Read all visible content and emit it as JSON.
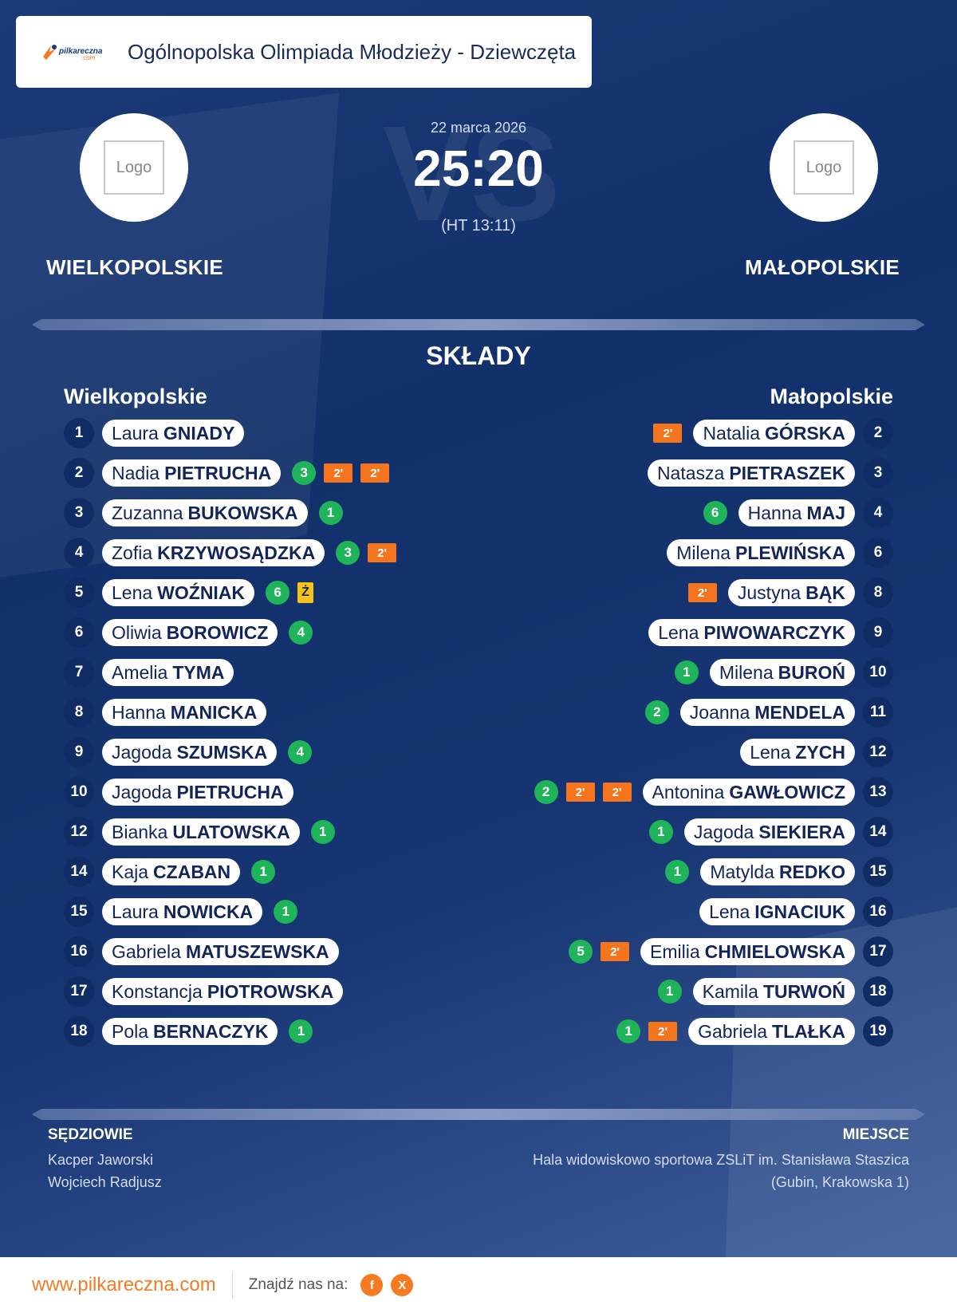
{
  "header": {
    "title": "Ogólnopolska Olimpiada Młodzieży - Dziewczęta",
    "brand_text": "pilkareczna",
    "brand_sub": ".com"
  },
  "match": {
    "date": "22 marca 2026",
    "score": "25:20",
    "halftime": "(HT 13:11)",
    "vs_text": "VS",
    "home": {
      "name": "WIELKOPOLSKIE",
      "logo_text": "Logo"
    },
    "away": {
      "name": "MAŁOPOLSKIE",
      "logo_text": "Logo"
    }
  },
  "lineups": {
    "title": "SKŁADY",
    "home_title": "Wielkopolskie",
    "away_title": "Małopolskie",
    "home": [
      {
        "num": "1",
        "first": "Laura",
        "last": "GNIADY",
        "badges": []
      },
      {
        "num": "2",
        "first": "Nadia",
        "last": "PIETRUCHA",
        "badges": [
          {
            "type": "goal",
            "text": "3"
          },
          {
            "type": "susp",
            "text": "2'"
          },
          {
            "type": "susp",
            "text": "2'"
          }
        ]
      },
      {
        "num": "3",
        "first": "Zuzanna",
        "last": "BUKOWSKA",
        "badges": [
          {
            "type": "goal",
            "text": "1"
          }
        ]
      },
      {
        "num": "4",
        "first": "Zofia",
        "last": "KRZYWOSĄDZKA",
        "badges": [
          {
            "type": "goal",
            "text": "3"
          },
          {
            "type": "susp",
            "text": "2'"
          }
        ]
      },
      {
        "num": "5",
        "first": "Lena",
        "last": "WOŹNIAK",
        "badges": [
          {
            "type": "goal",
            "text": "6"
          },
          {
            "type": "yellow",
            "text": "Ż"
          }
        ]
      },
      {
        "num": "6",
        "first": "Oliwia",
        "last": "BOROWICZ",
        "badges": [
          {
            "type": "goal",
            "text": "4"
          }
        ]
      },
      {
        "num": "7",
        "first": "Amelia",
        "last": "TYMA",
        "badges": []
      },
      {
        "num": "8",
        "first": "Hanna",
        "last": "MANICKA",
        "badges": []
      },
      {
        "num": "9",
        "first": "Jagoda",
        "last": "SZUMSKA",
        "badges": [
          {
            "type": "goal",
            "text": "4"
          }
        ]
      },
      {
        "num": "10",
        "first": "Jagoda",
        "last": "PIETRUCHA",
        "badges": []
      },
      {
        "num": "12",
        "first": "Bianka",
        "last": "ULATOWSKA",
        "badges": [
          {
            "type": "goal",
            "text": "1"
          }
        ]
      },
      {
        "num": "14",
        "first": "Kaja",
        "last": "CZABAN",
        "badges": [
          {
            "type": "goal",
            "text": "1"
          }
        ]
      },
      {
        "num": "15",
        "first": "Laura",
        "last": "NOWICKA",
        "badges": [
          {
            "type": "goal",
            "text": "1"
          }
        ]
      },
      {
        "num": "16",
        "first": "Gabriela",
        "last": "MATUSZEWSKA",
        "badges": []
      },
      {
        "num": "17",
        "first": "Konstancja",
        "last": "PIOTROWSKA",
        "badges": []
      },
      {
        "num": "18",
        "first": "Pola",
        "last": "BERNACZYK",
        "badges": [
          {
            "type": "goal",
            "text": "1"
          }
        ]
      }
    ],
    "away": [
      {
        "num": "2",
        "first": "Natalia",
        "last": "GÓRSKA",
        "badges": [
          {
            "type": "susp",
            "text": "2'"
          }
        ]
      },
      {
        "num": "3",
        "first": "Natasza",
        "last": "PIETRASZEK",
        "badges": []
      },
      {
        "num": "4",
        "first": "Hanna",
        "last": "MAJ",
        "badges": [
          {
            "type": "goal",
            "text": "6"
          }
        ]
      },
      {
        "num": "6",
        "first": "Milena",
        "last": "PLEWIŃSKA",
        "badges": []
      },
      {
        "num": "8",
        "first": "Justyna",
        "last": "BĄK",
        "badges": [
          {
            "type": "susp",
            "text": "2'"
          }
        ]
      },
      {
        "num": "9",
        "first": "Lena",
        "last": "PIWOWARCZYK",
        "badges": []
      },
      {
        "num": "10",
        "first": "Milena",
        "last": "BUROŃ",
        "badges": [
          {
            "type": "goal",
            "text": "1"
          }
        ]
      },
      {
        "num": "11",
        "first": "Joanna",
        "last": "MENDELA",
        "badges": [
          {
            "type": "goal",
            "text": "2"
          }
        ]
      },
      {
        "num": "12",
        "first": "Lena",
        "last": "ZYCH",
        "badges": []
      },
      {
        "num": "13",
        "first": "Antonina",
        "last": "GAWŁOWICZ",
        "badges": [
          {
            "type": "susp",
            "text": "2'"
          },
          {
            "type": "susp",
            "text": "2'"
          },
          {
            "type": "goal",
            "text": "2"
          }
        ]
      },
      {
        "num": "14",
        "first": "Jagoda",
        "last": "SIEKIERA",
        "badges": [
          {
            "type": "goal",
            "text": "1"
          }
        ]
      },
      {
        "num": "15",
        "first": "Matylda",
        "last": "REDKO",
        "badges": [
          {
            "type": "goal",
            "text": "1"
          }
        ]
      },
      {
        "num": "16",
        "first": "Lena",
        "last": "IGNACIUK",
        "badges": []
      },
      {
        "num": "17",
        "first": "Emilia",
        "last": "CHMIELOWSKA",
        "badges": [
          {
            "type": "susp",
            "text": "2'"
          },
          {
            "type": "goal",
            "text": "5"
          }
        ]
      },
      {
        "num": "18",
        "first": "Kamila",
        "last": "TURWOŃ",
        "badges": [
          {
            "type": "goal",
            "text": "1"
          }
        ]
      },
      {
        "num": "19",
        "first": "Gabriela",
        "last": "TLAŁKA",
        "badges": [
          {
            "type": "susp",
            "text": "2'"
          },
          {
            "type": "goal",
            "text": "1"
          }
        ]
      }
    ]
  },
  "officials": {
    "title": "SĘDZIOWIE",
    "names": [
      "Kacper Jaworski",
      "Wojciech Radjusz"
    ]
  },
  "venue": {
    "title": "MIEJSCE",
    "lines": [
      "Hala widowiskowo sportowa ZSLiT im. Stanisława Staszica",
      "(Gubin, Krakowska 1)"
    ]
  },
  "footer": {
    "site": "www.pilkareczna.com",
    "find_label": "Znajdź nas na:",
    "social": [
      {
        "icon": "facebook-icon",
        "glyph": "f"
      },
      {
        "icon": "x-icon",
        "glyph": "X"
      }
    ]
  },
  "colors": {
    "accent": "#f57a20",
    "goal": "#1fb35a",
    "suspension": "#f5751f",
    "yellow_card": "#f7c21a",
    "navy": "#12306a"
  }
}
